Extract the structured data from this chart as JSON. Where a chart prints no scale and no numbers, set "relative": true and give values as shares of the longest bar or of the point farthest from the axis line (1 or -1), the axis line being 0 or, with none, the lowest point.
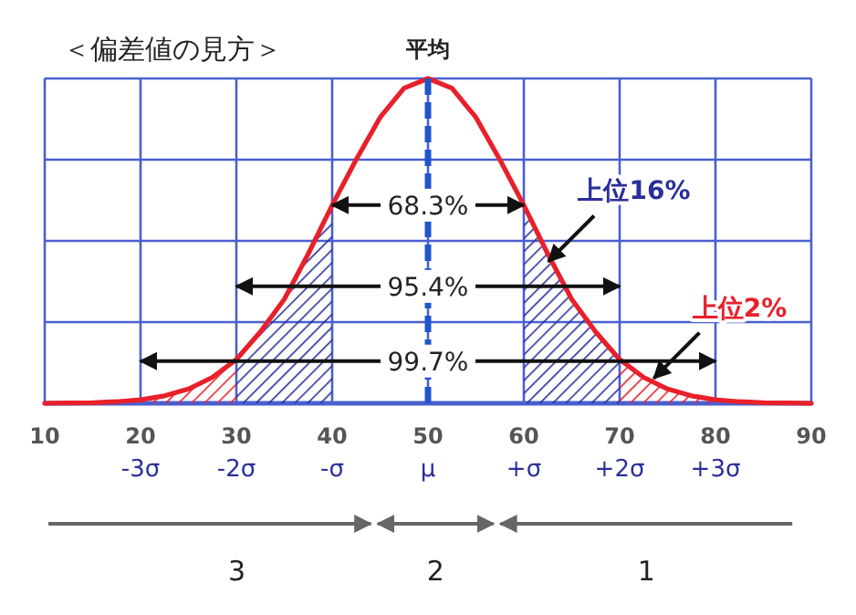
{
  "chart_data": {
    "type": "line",
    "title": "＜偏差値の見方＞",
    "relative": true,
    "grid": true,
    "marker": "none",
    "line_style": "solid",
    "xlim": [
      10,
      90
    ],
    "xticks": [
      10,
      20,
      30,
      40,
      50,
      60,
      70,
      80,
      90
    ],
    "series": [
      {
        "color": "#e8202a",
        "x": [
          10,
          12.5,
          15,
          17.5,
          20,
          22.5,
          25,
          27.5,
          30,
          32.5,
          35,
          37.5,
          40,
          42.5,
          45,
          47.5,
          50,
          52.5,
          55,
          57.5,
          60,
          62.5,
          65,
          67.5,
          70,
          72.5,
          75,
          77.5,
          80,
          82.5,
          85,
          87.5,
          90
        ],
        "values": [
          0,
          0.001,
          0.002,
          0.005,
          0.011,
          0.023,
          0.044,
          0.08,
          0.135,
          0.22,
          0.32,
          0.46,
          0.61,
          0.75,
          0.88,
          0.97,
          1,
          0.97,
          0.88,
          0.75,
          0.61,
          0.46,
          0.32,
          0.22,
          0.135,
          0.08,
          0.044,
          0.023,
          0.011,
          0.005,
          0.002,
          0.001,
          0
        ]
      },
      {
        "type": "area",
        "color": "#e8202a",
        "x": [
          20,
          22.5,
          25,
          27.5,
          30
        ],
        "values": [
          0.011,
          0.023,
          0.044,
          0.08,
          0.135
        ]
      },
      {
        "type": "area",
        "color": "#2a2f9a",
        "x": [
          30,
          32.5,
          35,
          37.5,
          40
        ],
        "values": [
          0.135,
          0.22,
          0.32,
          0.46,
          0.61
        ]
      },
      {
        "type": "area",
        "color": "#2a2f9a",
        "x": [
          60,
          62.5,
          65,
          67.5,
          70
        ],
        "values": [
          0.61,
          0.46,
          0.32,
          0.22,
          0.135
        ]
      },
      {
        "type": "area",
        "color": "#e8202a",
        "x": [
          70,
          72.5,
          75,
          77.5,
          80
        ],
        "values": [
          0.135,
          0.08,
          0.044,
          0.023,
          0.011
        ]
      }
    ],
    "ref_lines": [
      {
        "axis": "x",
        "value": 50,
        "label": "平均",
        "color": "#2255cc",
        "line_style": "dashed"
      }
    ],
    "annotations": [
      "-3σ",
      "-2σ",
      "-σ",
      "μ",
      "+σ",
      "+2σ",
      "+3σ",
      {
        "text": "68.3%",
        "x": 50,
        "y": 0.61
      },
      {
        "text": "95.4%",
        "x": 50,
        "y": 0.36
      },
      {
        "text": "99.7%",
        "x": 50,
        "y": 0.13
      },
      {
        "text": "上位16%",
        "x": 62,
        "y": 0.42
      },
      {
        "text": "上位2%",
        "x": 73,
        "y": 0.06
      },
      "3",
      "2",
      "1"
    ]
  }
}
